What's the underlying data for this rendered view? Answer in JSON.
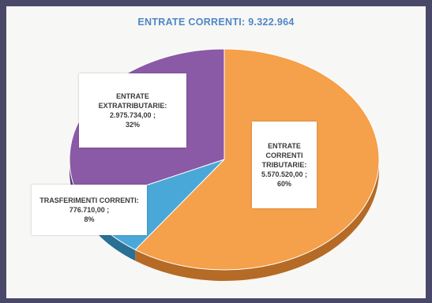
{
  "chart_data": {
    "type": "pie",
    "title": "ENTRATE CORRENTI: 9.322.964",
    "slices": [
      {
        "name": "ENTRATE CORRENTI TRIBUTARIE:",
        "value": 5570520.0,
        "value_label": "5.570.520,00 ;",
        "percent_label": "60%",
        "color": "#f5a04a",
        "side_color": "#b56a25"
      },
      {
        "name": "TRASFERIMENTI CORRENTI:",
        "value": 776710.0,
        "value_label": "776.710,00 ;",
        "percent_label": "8%",
        "color": "#4aa8d8",
        "side_color": "#2a6f94"
      },
      {
        "name": "ENTRATE EXTRATRIBUTARIE:",
        "value": 2975734.0,
        "value_label": "2.975.734,00 ;",
        "percent_label": "32%",
        "color": "#8a5aa6",
        "side_color": "#5a3472"
      }
    ]
  }
}
